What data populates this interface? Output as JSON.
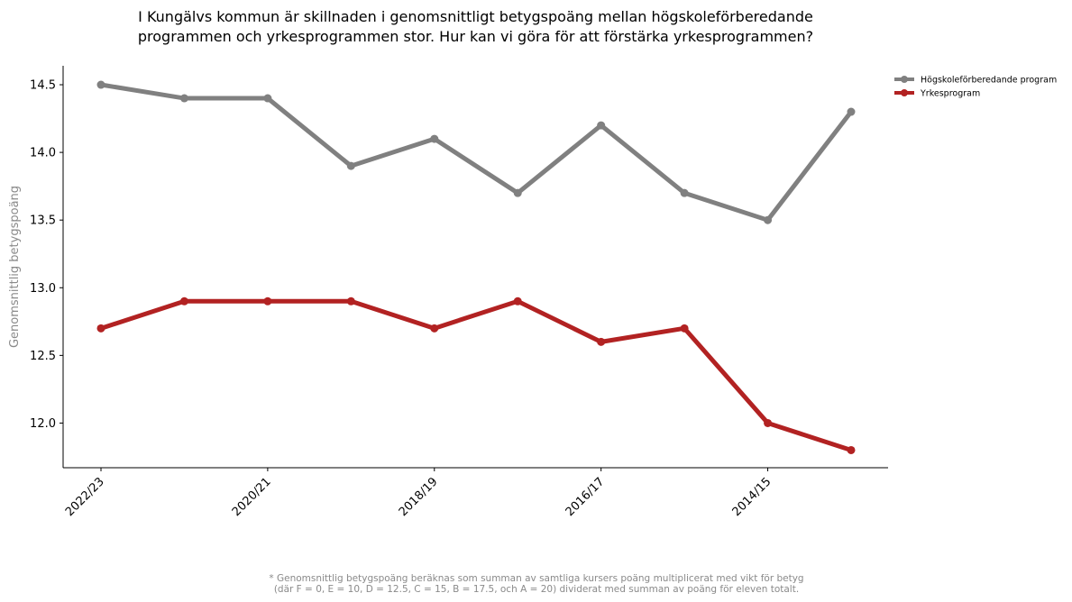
{
  "chart_data": {
    "type": "line",
    "title_lines": [
      "I Kungälvs kommun är skillnaden i genomsnittligt betygspoäng mellan högskoleförberedande",
      "programmen och yrkesprogrammen stor. Hur kan vi göra för att förstärka yrkesprogrammen?"
    ],
    "ylabel": "Genomsnittlig betygspoäng",
    "x_categories": [
      "2022/23",
      "",
      "2020/21",
      "",
      "2018/19",
      "",
      "2016/17",
      "",
      "2014/15",
      ""
    ],
    "x_tick_labels": [
      "2022/23",
      "2020/21",
      "2018/19",
      "2016/17",
      "2014/15"
    ],
    "y_ticks": [
      12.0,
      12.5,
      13.0,
      13.5,
      14.0,
      14.5
    ],
    "ylim": [
      11.67,
      14.64
    ],
    "grid": false,
    "legend_position": "outside top-right",
    "series": [
      {
        "name": "Högskoleförberedande program",
        "color": "#808080",
        "values": [
          14.5,
          14.4,
          14.4,
          13.9,
          14.1,
          13.7,
          14.2,
          13.7,
          13.5,
          14.3
        ]
      },
      {
        "name": "Yrkesprogram",
        "color": "#b22222",
        "values": [
          12.7,
          12.9,
          12.9,
          12.9,
          12.7,
          12.9,
          12.6,
          12.7,
          12.0,
          11.8
        ]
      }
    ],
    "footnote_lines": [
      "* Genomsnittlig betygspoäng beräknas som summan av samtliga kursers poäng multiplicerat med vikt för betyg",
      "(där F = 0, E = 10, D = 12.5, C = 15, B = 17.5, och A = 20) dividerat med summan av poäng för eleven totalt."
    ]
  }
}
